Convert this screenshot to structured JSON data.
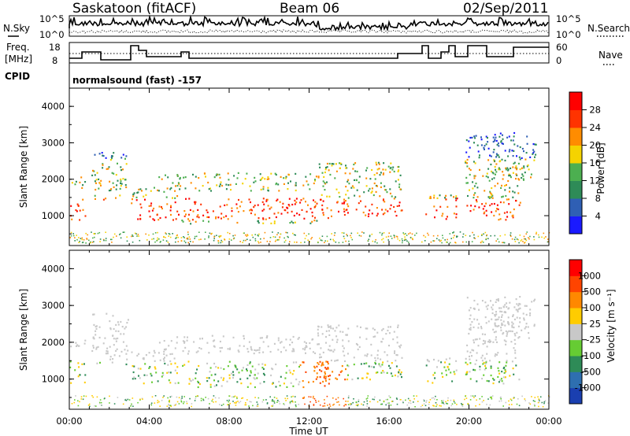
{
  "header": {
    "station": "Saskatoon (fitACF)",
    "beam": "Beam 06",
    "date": "02/Sep/2011"
  },
  "noise_panel": {
    "left_label": "N.Sky",
    "right_label": "N.Search",
    "left_ticks": [
      "10^5",
      "10^0"
    ],
    "right_ticks": [
      "10^5",
      "10^0"
    ]
  },
  "freq_panel": {
    "left_label_line1": "Freq.",
    "left_label_line2": "[MHz]",
    "left_ticks": [
      "18",
      "8"
    ],
    "right_label": "Nave",
    "right_ticks": [
      "60",
      "0"
    ]
  },
  "cpid": {
    "label": "CPID",
    "text": "normalsound (fast) -157"
  },
  "chart_data": [
    {
      "type": "heatmap",
      "name": "power",
      "ylabel": "Slant Range [km]",
      "ylim": [
        180,
        4500
      ],
      "yticks": [
        "1000",
        "2000",
        "3000",
        "4000"
      ],
      "colorbar_label": "Power [dB]",
      "colorbar_ticks": [
        "4",
        "8",
        "12",
        "16",
        "20",
        "24",
        "28"
      ],
      "colors": [
        "#1a1aff",
        "#2f5fb4",
        "#2e8b57",
        "#4caf50",
        "#f5d300",
        "#ff8c00",
        "#ff3300",
        "#ff0000"
      ]
    },
    {
      "type": "heatmap",
      "name": "velocity",
      "ylabel": "Slant Range [km]",
      "xlabel": "Time UT",
      "ylim": [
        180,
        4500
      ],
      "yticks": [
        "1000",
        "2000",
        "3000",
        "4000"
      ],
      "xticks": [
        "00:00",
        "04:00",
        "08:00",
        "12:00",
        "16:00",
        "20:00",
        "00:00"
      ],
      "colorbar_label": "Velocity [m s⁻¹]",
      "colorbar_ticks": [
        "1000",
        "500",
        "100",
        "25",
        "-25",
        "-100",
        "-500",
        "-1000"
      ],
      "colors": [
        "#1a3fb0",
        "#2e6fb0",
        "#2e8b57",
        "#66cc33",
        "#c8c8c8",
        "#ffcc00",
        "#ff8800",
        "#ff4400",
        "#ff0000"
      ]
    }
  ]
}
